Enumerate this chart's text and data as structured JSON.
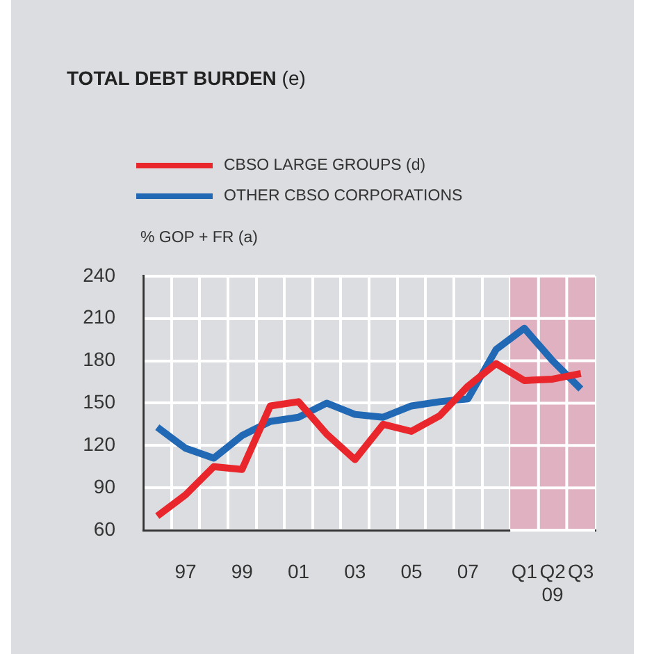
{
  "chart_data": {
    "type": "line",
    "title": "TOTAL DEBT BURDEN (e)",
    "ylabel": "% GOP + FR (a)",
    "categories": [
      null,
      "97",
      null,
      "99",
      null,
      "01",
      null,
      "03",
      null,
      "05",
      null,
      "07",
      null,
      "Q1",
      "Q2\n09",
      "Q3"
    ],
    "series": [
      {
        "name": "CBSO LARGE GROUPS (d)",
        "color": "#e8262b",
        "values": [
          70,
          85,
          105,
          103,
          148,
          151,
          128,
          110,
          135,
          130,
          141,
          162,
          178,
          166,
          167,
          171
        ]
      },
      {
        "name": "OTHER CBSO CORPORATIONS",
        "color": "#2168b5",
        "values": [
          133,
          118,
          111,
          127,
          137,
          140,
          150,
          142,
          140,
          148,
          151,
          153,
          188,
          203,
          180,
          160
        ]
      }
    ],
    "ylim": [
      60,
      240
    ],
    "yticks": [
      60,
      90,
      120,
      150,
      180,
      210,
      240
    ],
    "bands": [
      {
        "axis": "x",
        "from": "Q1",
        "to": "Q3",
        "color": "#e0b1c0"
      }
    ],
    "grid": true,
    "legend": "top left",
    "marker": "none",
    "line_style": "solid"
  }
}
